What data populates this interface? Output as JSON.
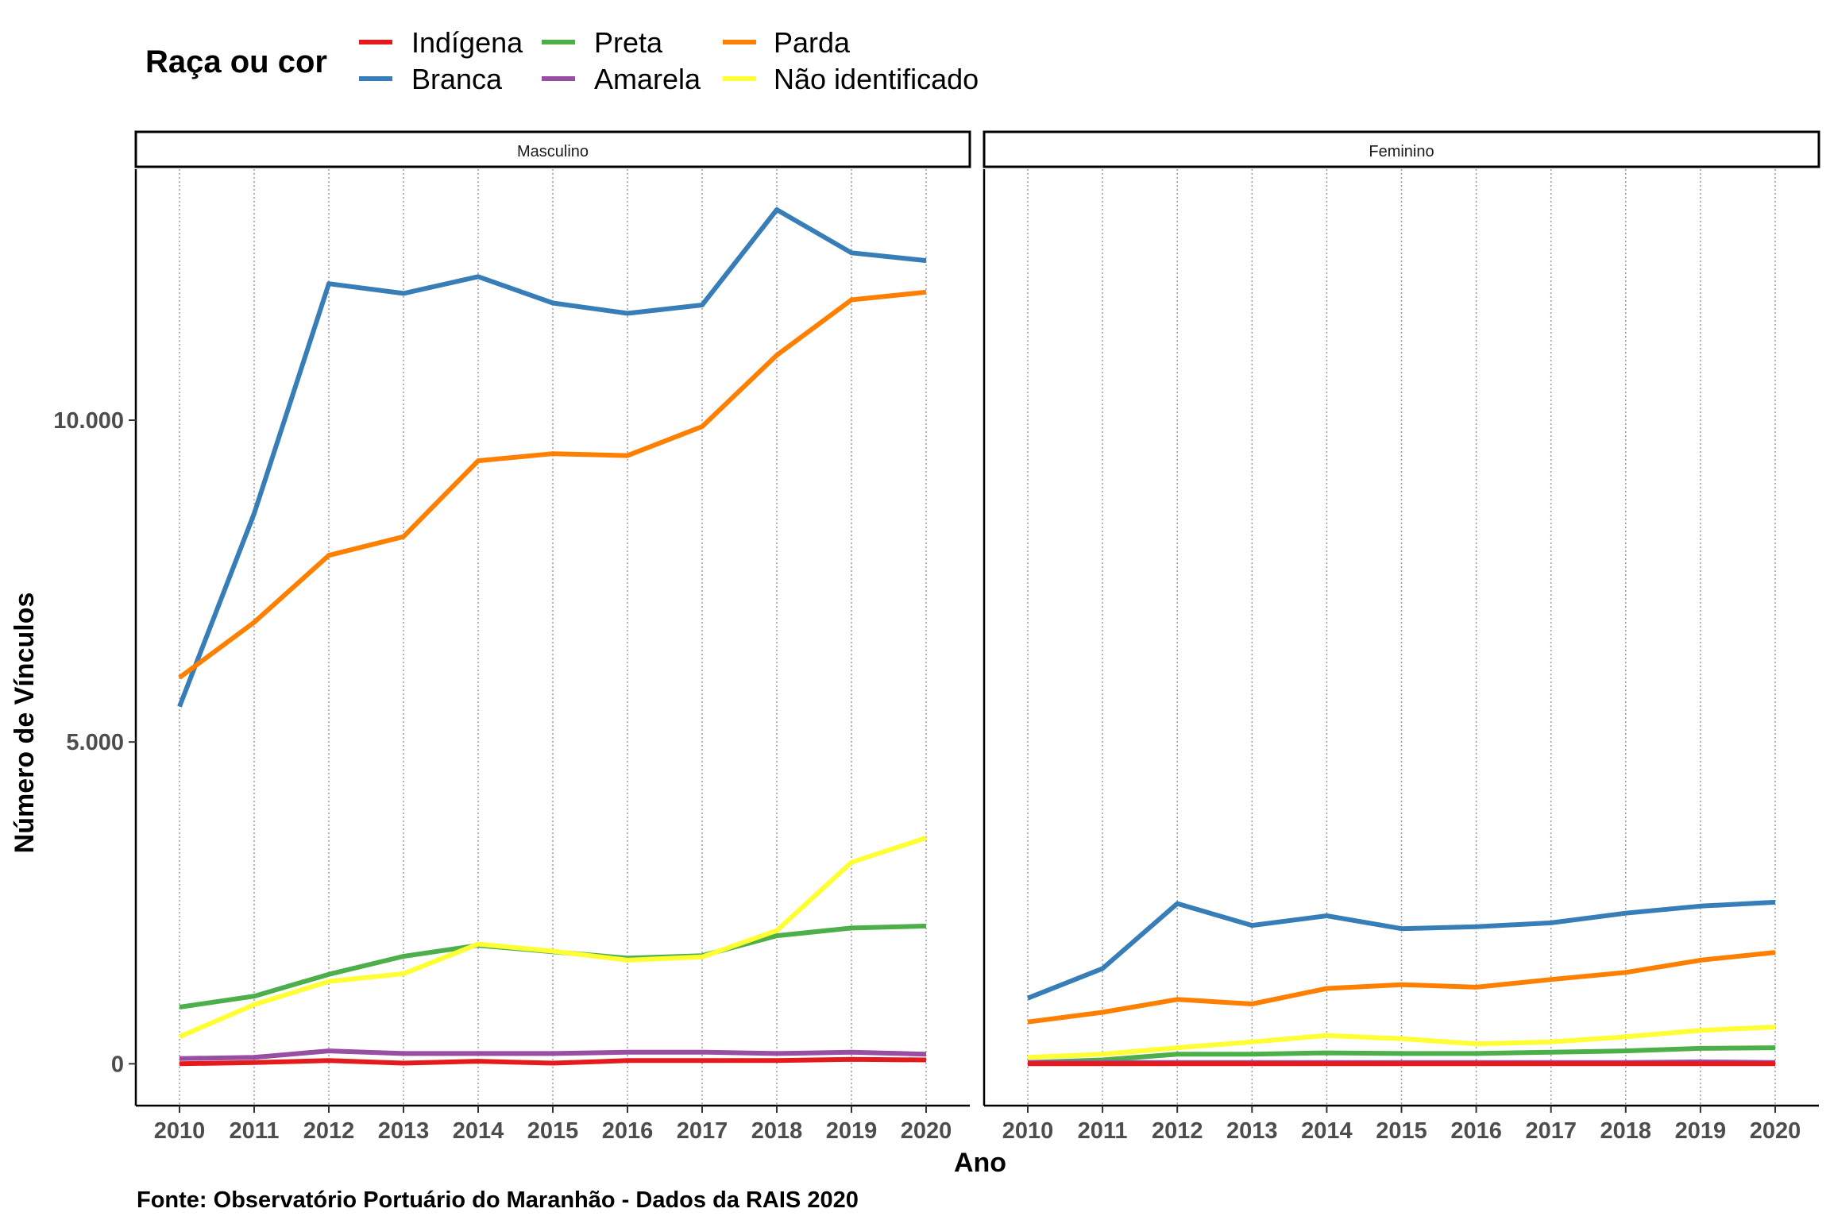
{
  "legend": {
    "title": "Raça ou cor",
    "entries": [
      {
        "label": "Indígena",
        "color": "#E41A1C"
      },
      {
        "label": "Branca",
        "color": "#377EB8"
      },
      {
        "label": "Preta",
        "color": "#4DAF4A"
      },
      {
        "label": "Amarela",
        "color": "#984EA3"
      },
      {
        "label": "Parda",
        "color": "#FF7F00"
      },
      {
        "label": "Não identificado",
        "color": "#FFFF33"
      }
    ]
  },
  "caption": "Fonte: Observatório Portuário do Maranhão - Dados da RAIS 2020",
  "chart_data": {
    "type": "line",
    "xlabel": "Ano",
    "ylabel": "Número de Vínculos",
    "x": [
      2010,
      2011,
      2012,
      2013,
      2014,
      2015,
      2016,
      2017,
      2018,
      2019,
      2020
    ],
    "x_tick_labels": [
      "2010",
      "2011",
      "2012",
      "2013",
      "2014",
      "2015",
      "2016",
      "2017",
      "2018",
      "2019",
      "2020"
    ],
    "y_ticks": [
      0,
      5000,
      10000
    ],
    "y_tick_labels": [
      "0",
      "5.000",
      "10.000"
    ],
    "ylim": [
      -650,
      13900
    ],
    "grid": "vertical dotted",
    "legend_position": "top",
    "panels": [
      {
        "label": "Masculino",
        "series": [
          {
            "name": "Indígena",
            "values": [
              0,
              20,
              50,
              10,
              40,
              10,
              50,
              50,
              50,
              70,
              60
            ]
          },
          {
            "name": "Branca",
            "values": [
              5550,
              8550,
              12120,
              11970,
              12230,
              11820,
              11660,
              11790,
              13270,
              12600,
              12480
            ]
          },
          {
            "name": "Preta",
            "values": [
              880,
              1050,
              1390,
              1670,
              1840,
              1740,
              1640,
              1680,
              1990,
              2110,
              2140
            ]
          },
          {
            "name": "Amarela",
            "values": [
              80,
              100,
              200,
              160,
              160,
              160,
              180,
              180,
              160,
              180,
              150
            ]
          },
          {
            "name": "Parda",
            "values": [
              6000,
              6860,
              7900,
              8190,
              9370,
              9480,
              9450,
              9900,
              11010,
              11870,
              11990
            ]
          },
          {
            "name": "Não identificado",
            "values": [
              420,
              920,
              1280,
              1400,
              1860,
              1750,
              1610,
              1660,
              2070,
              3130,
              3510
            ]
          }
        ]
      },
      {
        "label": "Feminino",
        "series": [
          {
            "name": "Indígena",
            "values": [
              0,
              0,
              0,
              0,
              0,
              0,
              0,
              0,
              0,
              0,
              0
            ]
          },
          {
            "name": "Branca",
            "values": [
              1020,
              1480,
              2490,
              2150,
              2300,
              2100,
              2130,
              2190,
              2340,
              2450,
              2510
            ]
          },
          {
            "name": "Preta",
            "values": [
              20,
              60,
              150,
              150,
              170,
              160,
              160,
              180,
              200,
              240,
              250
            ]
          },
          {
            "name": "Amarela",
            "values": [
              20,
              20,
              20,
              20,
              20,
              20,
              20,
              20,
              20,
              30,
              20
            ]
          },
          {
            "name": "Parda",
            "values": [
              650,
              800,
              1000,
              930,
              1170,
              1230,
              1190,
              1310,
              1420,
              1610,
              1730
            ]
          },
          {
            "name": "Não identificado",
            "values": [
              100,
              150,
              250,
              340,
              440,
              390,
              310,
              340,
              420,
              520,
              570
            ]
          }
        ]
      }
    ]
  }
}
